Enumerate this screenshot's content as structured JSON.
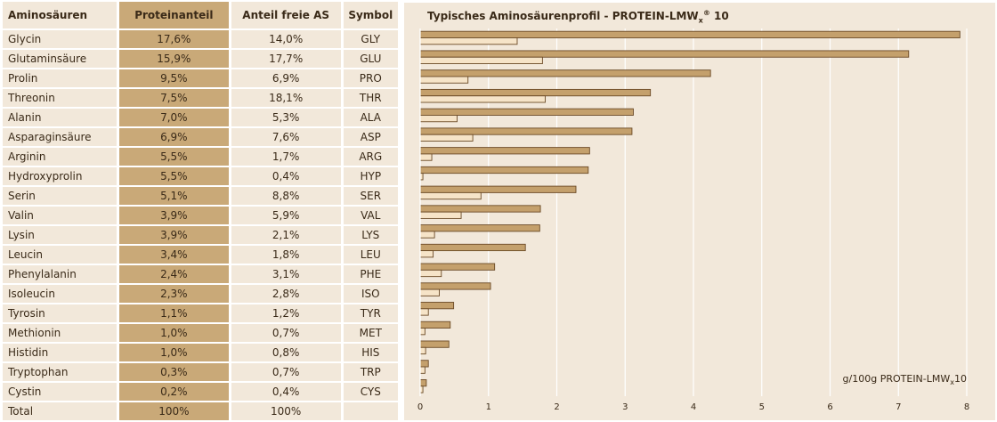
{
  "table": {
    "headers": [
      "Aminosäuren",
      "Proteinanteil",
      "Anteil freie AS",
      "Symbol"
    ],
    "rows": [
      [
        "Glycin",
        "17,6%",
        "14,0%",
        "GLY"
      ],
      [
        "Glutaminsäure",
        "15,9%",
        "17,7%",
        "GLU"
      ],
      [
        "Prolin",
        "9,5%",
        "6,9%",
        "PRO"
      ],
      [
        "Threonin",
        "7,5%",
        "18,1%",
        "THR"
      ],
      [
        "Alanin",
        "7,0%",
        "5,3%",
        "ALA"
      ],
      [
        "Asparaginsäure",
        "6,9%",
        "7,6%",
        "ASP"
      ],
      [
        "Arginin",
        "5,5%",
        "1,7%",
        "ARG"
      ],
      [
        "Hydroxyprolin",
        "5,5%",
        "0,4%",
        "HYP"
      ],
      [
        "Serin",
        "5,1%",
        "8,8%",
        "SER"
      ],
      [
        "Valin",
        "3,9%",
        "5,9%",
        "VAL"
      ],
      [
        "Lysin",
        "3,9%",
        "2,1%",
        "LYS"
      ],
      [
        "Leucin",
        "3,4%",
        "1,8%",
        "LEU"
      ],
      [
        "Phenylalanin",
        "2,4%",
        "3,1%",
        "PHE"
      ],
      [
        "Isoleucin",
        "2,3%",
        "2,8%",
        "ISO"
      ],
      [
        "Tyrosin",
        "1,1%",
        "1,2%",
        "TYR"
      ],
      [
        "Methionin",
        "1,0%",
        "0,7%",
        "MET"
      ],
      [
        "Histidin",
        "1,0%",
        "0,8%",
        "HIS"
      ],
      [
        "Tryptophan",
        "0,3%",
        "0,7%",
        "TRP"
      ],
      [
        "Cystin",
        "0,2%",
        "0,4%",
        "CYS"
      ],
      [
        "Total",
        "100%",
        "100%",
        ""
      ]
    ]
  },
  "chart_title": {
    "text": "Typisches Aminosäurenprofil  - PROTEIN-LMW",
    "sub": "x",
    "sup": "®",
    "suffix": " 10"
  },
  "unit_label": {
    "text": "g/100g PROTEIN-LMW",
    "sub": "x",
    "suffix": "10"
  },
  "colors": {
    "panel": "#f2e8da",
    "highlight": "#c9a978",
    "bar_dark": "#c4a06c",
    "bar_light": "#f6e4c8",
    "bar_border": "#6b4a26",
    "grid": "#ffffff"
  },
  "chart_data": {
    "type": "bar",
    "orientation": "horizontal",
    "categories": [
      "GLY",
      "GLU",
      "PRO",
      "THR",
      "ALA",
      "ASP",
      "ARG",
      "HYP",
      "SER",
      "VAL",
      "LYS",
      "LEU",
      "PHE",
      "ISO",
      "TYR",
      "MET",
      "HIS",
      "TRP",
      "CYS"
    ],
    "series": [
      {
        "values": [
          7.9,
          7.15,
          4.25,
          3.37,
          3.12,
          3.1,
          2.48,
          2.46,
          2.28,
          1.76,
          1.75,
          1.54,
          1.09,
          1.03,
          0.49,
          0.44,
          0.42,
          0.12,
          0.09
        ]
      },
      {
        "values": [
          1.42,
          1.79,
          0.7,
          1.83,
          0.54,
          0.77,
          0.17,
          0.04,
          0.89,
          0.6,
          0.21,
          0.19,
          0.31,
          0.28,
          0.12,
          0.07,
          0.08,
          0.07,
          0.04
        ]
      }
    ],
    "xlim": [
      0,
      8
    ],
    "xticks": [
      "0",
      "1",
      "2",
      "3",
      "4",
      "5",
      "6",
      "7",
      "8"
    ],
    "grid": true
  }
}
